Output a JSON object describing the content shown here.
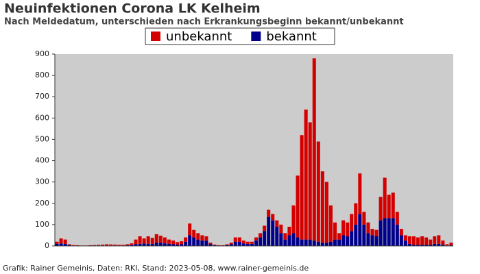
{
  "chart_data": {
    "type": "stacked-bar",
    "title": "Neuinfektionen Corona LK Kelheim",
    "subtitle": "Nach Meldedatum, unterschieden nach Erkrankungsbeginn bekannt/unbekannt",
    "footer": "Grafik: Rainer Gemeinis, Daten: RKI, Stand: 2023-05-08, www.rainer-gemeinis.de",
    "categories": [
      null,
      null,
      null,
      null,
      null,
      null,
      null,
      null,
      null,
      null,
      null,
      null,
      null,
      null,
      null,
      null,
      null,
      null,
      null,
      null,
      null,
      null,
      null,
      null,
      null,
      null,
      null,
      null,
      null,
      null,
      null,
      null,
      null,
      null,
      null,
      null,
      null,
      null,
      null,
      null,
      null,
      null,
      null,
      null,
      null,
      null,
      null,
      null,
      null,
      null,
      null,
      null,
      null,
      null,
      null,
      null,
      null,
      null,
      null,
      null,
      null,
      null,
      null,
      null,
      null,
      null,
      null,
      null,
      null,
      null,
      null,
      null,
      null,
      null,
      null,
      null,
      null,
      null,
      null,
      null,
      null,
      null,
      null,
      null,
      null,
      null,
      null,
      null,
      null,
      null,
      null,
      null,
      null,
      null,
      null,
      null
    ],
    "series": [
      {
        "name": "unbekannt",
        "color": "#d40000",
        "values": [
          10,
          23,
          20,
          4,
          2,
          2,
          1,
          1,
          2,
          2,
          3,
          4,
          6,
          5,
          4,
          3,
          3,
          5,
          8,
          22,
          35,
          23,
          35,
          28,
          40,
          33,
          28,
          20,
          17,
          12,
          14,
          20,
          55,
          35,
          30,
          25,
          20,
          7,
          3,
          2,
          2,
          4,
          7,
          20,
          20,
          13,
          10,
          10,
          15,
          20,
          25,
          35,
          30,
          30,
          40,
          30,
          40,
          130,
          290,
          490,
          610,
          550,
          855,
          470,
          335,
          285,
          170,
          80,
          30,
          70,
          65,
          80,
          100,
          190,
          60,
          50,
          30,
          30,
          110,
          190,
          110,
          120,
          60,
          30,
          25,
          35,
          40,
          35,
          40,
          35,
          25,
          35,
          40,
          20,
          6,
          12
        ]
      },
      {
        "name": "bekannt",
        "color": "#00008b",
        "values": [
          10,
          12,
          10,
          4,
          2,
          1,
          1,
          1,
          1,
          2,
          2,
          2,
          2,
          2,
          2,
          2,
          2,
          3,
          4,
          8,
          10,
          12,
          10,
          10,
          15,
          15,
          12,
          10,
          8,
          6,
          8,
          20,
          50,
          40,
          30,
          25,
          25,
          8,
          3,
          1,
          1,
          4,
          8,
          20,
          20,
          12,
          10,
          10,
          25,
          40,
          70,
          135,
          120,
          90,
          60,
          30,
          50,
          60,
          40,
          30,
          30,
          30,
          25,
          20,
          15,
          15,
          20,
          30,
          30,
          50,
          45,
          70,
          100,
          150,
          100,
          60,
          50,
          45,
          120,
          130,
          130,
          130,
          100,
          50,
          25,
          10,
          5,
          5,
          5,
          5,
          5,
          10,
          10,
          5,
          2,
          3
        ]
      }
    ],
    "ylim": [
      0,
      900
    ],
    "yticks": [
      0,
      100,
      200,
      300,
      400,
      500,
      600,
      700,
      800,
      900
    ],
    "background": "#cccccc"
  }
}
